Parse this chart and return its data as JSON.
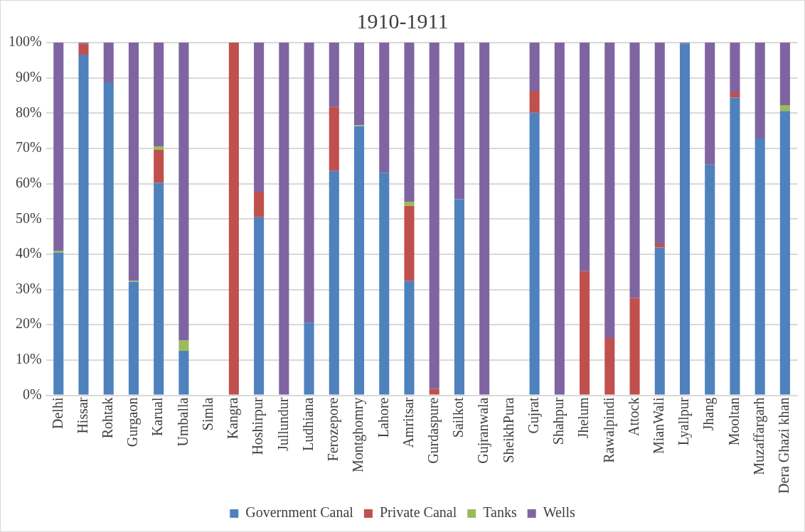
{
  "chart_data": {
    "type": "bar",
    "title": "1910-1911",
    "stacked": true,
    "categories": [
      "Delhi",
      "Hissar",
      "Rohtak",
      "Gurgaon",
      "Karual",
      "Umballa",
      "Simla",
      "Kangra",
      "Hoshirpur",
      "Jullundur",
      "Ludhiana",
      "Ferozepore",
      "Montghomry",
      "Lahore",
      "Amritsar",
      "Gurdaspure",
      "Sailkot",
      "Gujranwala",
      "SheikhPura",
      "Gujrat",
      "Shahpur",
      "Jhelum",
      "Rawalpindi",
      "Attock",
      "MianWali",
      "Lyallpur",
      "Jhang",
      "Mooltan",
      "Muzaffargarh",
      "Dera Ghazi khan"
    ],
    "series": [
      {
        "name": "Government Canal",
        "color": "#4f81bd",
        "values": [
          40.5,
          96.6,
          88.7,
          32.2,
          60.2,
          12.6,
          null,
          0,
          50.5,
          0,
          20.6,
          63.6,
          76.3,
          63,
          32.4,
          0,
          55.6,
          0,
          null,
          80.1,
          0,
          0,
          0,
          0,
          41.9,
          99.7,
          65.4,
          84.4,
          72.8,
          80.6
        ]
      },
      {
        "name": "Private Canal",
        "color": "#c0504d",
        "values": [
          0,
          3.1,
          0,
          0,
          9.4,
          0,
          null,
          100,
          7.2,
          0,
          0,
          18.1,
          0,
          0,
          21.3,
          1.8,
          0,
          0,
          null,
          6.2,
          0.2,
          35.2,
          16.2,
          27.6,
          1.1,
          0,
          0,
          1.5,
          0,
          0
        ]
      },
      {
        "name": "Tanks",
        "color": "#9bbb59",
        "values": [
          0.5,
          0,
          0,
          0.3,
          1,
          2.9,
          null,
          0,
          0,
          0,
          0,
          0,
          0.3,
          0,
          1.2,
          0,
          0,
          0,
          null,
          0,
          0,
          0,
          0,
          0,
          0,
          0,
          0,
          0,
          0,
          1.7
        ]
      },
      {
        "name": "Wells",
        "color": "#8064a2",
        "values": [
          59,
          0.3,
          11.3,
          67.5,
          29.4,
          84.5,
          null,
          0,
          42.3,
          100,
          79.4,
          18.3,
          23.4,
          37,
          45.1,
          98.2,
          44.4,
          100,
          null,
          13.7,
          99.8,
          64.8,
          83.8,
          72.4,
          57,
          0.3,
          34.6,
          14.1,
          27.2,
          17.7
        ]
      }
    ],
    "ylim": [
      0,
      100
    ],
    "yticks": [
      {
        "value": 0,
        "label": "0%"
      },
      {
        "value": 10,
        "label": "10%"
      },
      {
        "value": 20,
        "label": "20%"
      },
      {
        "value": 30,
        "label": "30%"
      },
      {
        "value": 40,
        "label": "40%"
      },
      {
        "value": 50,
        "label": "50%"
      },
      {
        "value": 60,
        "label": "60%"
      },
      {
        "value": 70,
        "label": "70%"
      },
      {
        "value": 80,
        "label": "80%"
      },
      {
        "value": 90,
        "label": "90%"
      },
      {
        "value": 100,
        "label": "100%"
      }
    ],
    "grid": "y",
    "legend": "bottom"
  }
}
